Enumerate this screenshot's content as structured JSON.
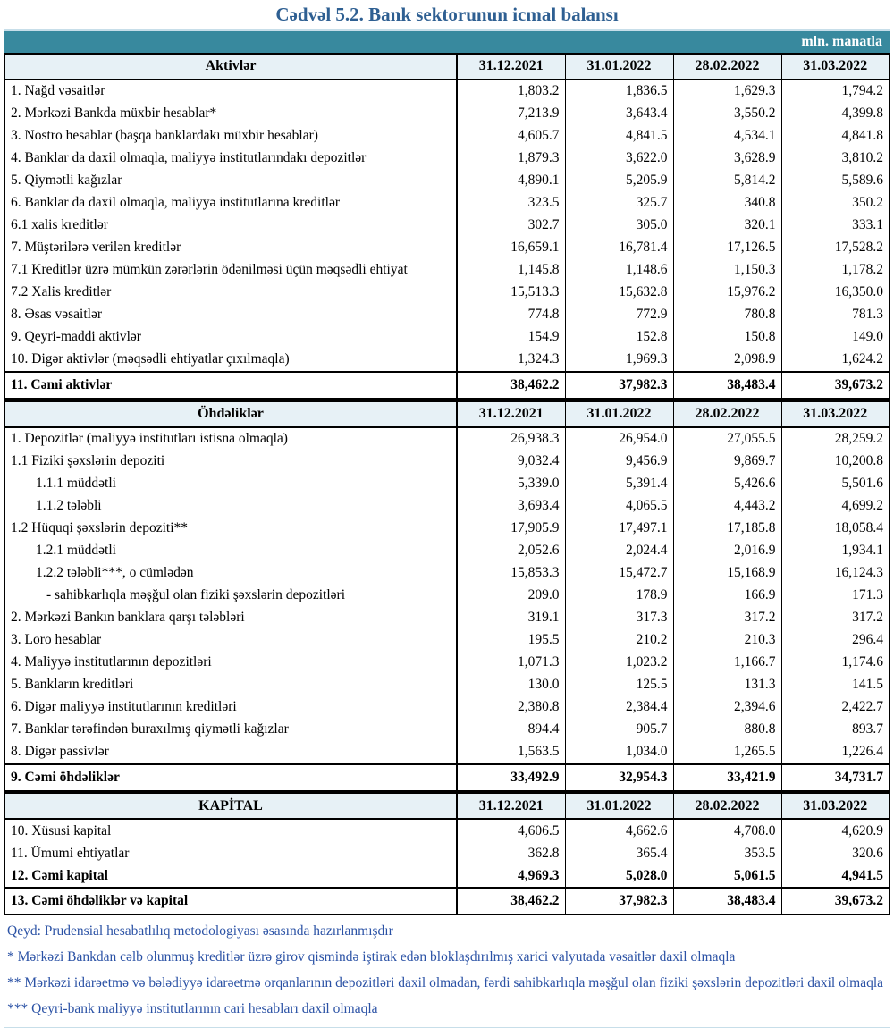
{
  "title": "Cədvəl 5.2. Bank sektorunun icmal balansı",
  "unit_label": "mln. manatla",
  "columns": [
    "31.12.2021",
    "31.01.2022",
    "28.02.2022",
    "31.03.2022"
  ],
  "colors": {
    "title_blue": "#2e5f92",
    "teal_band": "#38899e",
    "light_band": "#c7dee9",
    "header_fill": "#e7f1f6",
    "footnote_blue": "#2b52a5"
  },
  "sections": [
    {
      "header": "Aktivlər",
      "rows": [
        {
          "label": "1. Nağd vəsaitlər",
          "values": [
            "1,803.2",
            "1,836.5",
            "1,629.3",
            "1,794.2"
          ],
          "style": "normal",
          "indent": 0
        },
        {
          "label": "2. Mərkəzi Bankda müxbir hesablar*",
          "values": [
            "7,213.9",
            "3,643.4",
            "3,550.2",
            "4,399.8"
          ],
          "style": "normal",
          "indent": 0
        },
        {
          "label": "3. Nostro hesablar (başqa banklardakı müxbir hesablar)",
          "values": [
            "4,605.7",
            "4,841.5",
            "4,534.1",
            "4,841.8"
          ],
          "style": "normal",
          "indent": 0
        },
        {
          "label": "4. Banklar da daxil olmaqla, maliyyə institutlarındakı depozitlər",
          "values": [
            "1,879.3",
            "3,622.0",
            "3,628.9",
            "3,810.2"
          ],
          "style": "normal",
          "indent": 0
        },
        {
          "label": "5. Qiymətli kağızlar",
          "values": [
            "4,890.1",
            "5,205.9",
            "5,814.2",
            "5,589.6"
          ],
          "style": "normal",
          "indent": 0
        },
        {
          "label": "6. Banklar da daxil olmaqla, maliyyə institutlarına kreditlər",
          "values": [
            "323.5",
            "325.7",
            "340.8",
            "350.2"
          ],
          "style": "normal",
          "indent": 0
        },
        {
          "label": "6.1 xalis kreditlər",
          "values": [
            "302.7",
            "305.0",
            "320.1",
            "333.1"
          ],
          "style": "normal",
          "indent": 0
        },
        {
          "label": "7. Müştərilərə verilən kreditlər",
          "values": [
            "16,659.1",
            "16,781.4",
            "17,126.5",
            "17,528.2"
          ],
          "style": "normal",
          "indent": 0
        },
        {
          "label": "7.1 Kreditlər üzrə mümkün zərərlərin ödənilməsi üçün məqsədli ehtiyat",
          "values": [
            "1,145.8",
            "1,148.6",
            "1,150.3",
            "1,178.2"
          ],
          "style": "normal",
          "indent": 0
        },
        {
          "label": "7.2 Xalis kreditlər",
          "values": [
            "15,513.3",
            "15,632.8",
            "15,976.2",
            "16,350.0"
          ],
          "style": "normal",
          "indent": 0
        },
        {
          "label": "8.  Əsas vəsaitlər",
          "values": [
            "774.8",
            "772.9",
            "780.8",
            "781.3"
          ],
          "style": "normal",
          "indent": 0
        },
        {
          "label": "9. Qeyri-maddi aktivlər",
          "values": [
            "154.9",
            "152.8",
            "150.8",
            "149.0"
          ],
          "style": "normal",
          "indent": 0
        },
        {
          "label": "10. Digər aktivlər (məqsədli ehtiyatlar çıxılmaqla)",
          "values": [
            "1,324.3",
            "1,969.3",
            "2,098.9",
            "1,624.2"
          ],
          "style": "normal",
          "indent": 0
        },
        {
          "label": "11. Cəmi aktivlər",
          "values": [
            "38,462.2",
            "37,982.3",
            "38,483.4",
            "39,673.2"
          ],
          "style": "total",
          "indent": 0
        }
      ]
    },
    {
      "header": "Öhdəliklər",
      "rows": [
        {
          "label": "1. Depozitlər (maliyyə institutları istisna olmaqla)",
          "values": [
            "26,938.3",
            "26,954.0",
            "27,055.5",
            "28,259.2"
          ],
          "style": "normal",
          "indent": 0
        },
        {
          "label": "1.1 Fiziki şəxslərin depoziti",
          "values": [
            "9,032.4",
            "9,456.9",
            "9,869.7",
            "10,200.8"
          ],
          "style": "normal",
          "indent": 0
        },
        {
          "label": "1.1.1 müddətli",
          "values": [
            "5,339.0",
            "5,391.4",
            "5,426.6",
            "5,501.6"
          ],
          "style": "normal",
          "indent": 1
        },
        {
          "label": "1.1.2 tələbli",
          "values": [
            "3,693.4",
            "4,065.5",
            "4,443.2",
            "4,699.2"
          ],
          "style": "normal",
          "indent": 1
        },
        {
          "label": "1.2 Hüquqi şəxslərin depoziti**",
          "values": [
            "17,905.9",
            "17,497.1",
            "17,185.8",
            "18,058.4"
          ],
          "style": "normal",
          "indent": 0
        },
        {
          "label": "1.2.1 müddətli",
          "values": [
            "2,052.6",
            "2,024.4",
            "2,016.9",
            "1,934.1"
          ],
          "style": "normal",
          "indent": 1
        },
        {
          "label": "1.2.2 tələbli***, o cümlədən",
          "values": [
            "15,853.3",
            "15,472.7",
            "15,168.9",
            "16,124.3"
          ],
          "style": "normal",
          "indent": 1
        },
        {
          "label": "- sahibkarlıqla məşğul olan fiziki şəxslərin depozitləri",
          "values": [
            "209.0",
            "178.9",
            "166.9",
            "171.3"
          ],
          "style": "normal",
          "indent": 2
        },
        {
          "label": "2. Mərkəzi Bankın banklara qarşı tələbləri",
          "values": [
            "319.1",
            "317.3",
            "317.2",
            "317.2"
          ],
          "style": "normal",
          "indent": 0
        },
        {
          "label": "3. Loro hesablar",
          "values": [
            "195.5",
            "210.2",
            "210.3",
            "296.4"
          ],
          "style": "normal",
          "indent": 0
        },
        {
          "label": "4. Maliyyə institutlarının  depozitləri",
          "values": [
            "1,071.3",
            "1,023.2",
            "1,166.7",
            "1,174.6"
          ],
          "style": "normal",
          "indent": 0
        },
        {
          "label": "5. Bankların kreditləri",
          "values": [
            "130.0",
            "125.5",
            "131.3",
            "141.5"
          ],
          "style": "normal",
          "indent": 0
        },
        {
          "label": "6. Digər maliyyə institutlarının kreditləri",
          "values": [
            "2,380.8",
            "2,384.4",
            "2,394.6",
            "2,422.7"
          ],
          "style": "normal",
          "indent": 0
        },
        {
          "label": "7. Banklar tərəfindən buraxılmış qiymətli kağızlar",
          "values": [
            "894.4",
            "905.7",
            "880.8",
            "893.7"
          ],
          "style": "normal",
          "indent": 0
        },
        {
          "label": "8. Digər passivlər",
          "values": [
            "1,563.5",
            "1,034.0",
            "1,265.5",
            "1,226.4"
          ],
          "style": "normal",
          "indent": 0
        },
        {
          "label": "9. Cəmi öhdəliklər",
          "values": [
            "33,492.9",
            "32,954.3",
            "33,421.9",
            "34,731.7"
          ],
          "style": "total",
          "indent": 0
        }
      ]
    },
    {
      "header": "KAPİTAL",
      "rows": [
        {
          "label": "10. Xüsusi kapital",
          "values": [
            "4,606.5",
            "4,662.6",
            "4,708.0",
            "4,620.9"
          ],
          "style": "normal",
          "indent": 0
        },
        {
          "label": "11. Ümumi ehtiyatlar",
          "values": [
            "362.8",
            "365.4",
            "353.5",
            "320.6"
          ],
          "style": "normal",
          "indent": 0
        },
        {
          "label": "12. Cəmi kapital",
          "values": [
            "4,969.3",
            "5,028.0",
            "5,061.5",
            "4,941.5"
          ],
          "style": "bold",
          "indent": 0
        },
        {
          "label": "13. Cəmi öhdəliklər və kapital",
          "values": [
            "38,462.2",
            "37,982.3",
            "38,483.4",
            "39,673.2"
          ],
          "style": "total",
          "indent": 0
        }
      ]
    }
  ],
  "footnotes": [
    "Qeyd: Prudensial hesabatlılıq metodologiyası əsasında hazırlanmışdır",
    "* Mərkəzi Bankdan cəlb olunmuş kreditlər üzrə girov qismində iştirak edən bloklaşdırılmış xarici valyutada vəsaitlər daxil olmaqla",
    "** Mərkəzi idarəetmə və bələdiyyə idarəetmə orqanlarının depozitləri daxil olmadan, fərdi sahibkarlıqla məşğul olan fiziki şəxslərin depozitləri daxil olmaqla",
    "*** Qeyri-bank maliyyə institutlarının cari hesabları daxil olmaqla"
  ]
}
